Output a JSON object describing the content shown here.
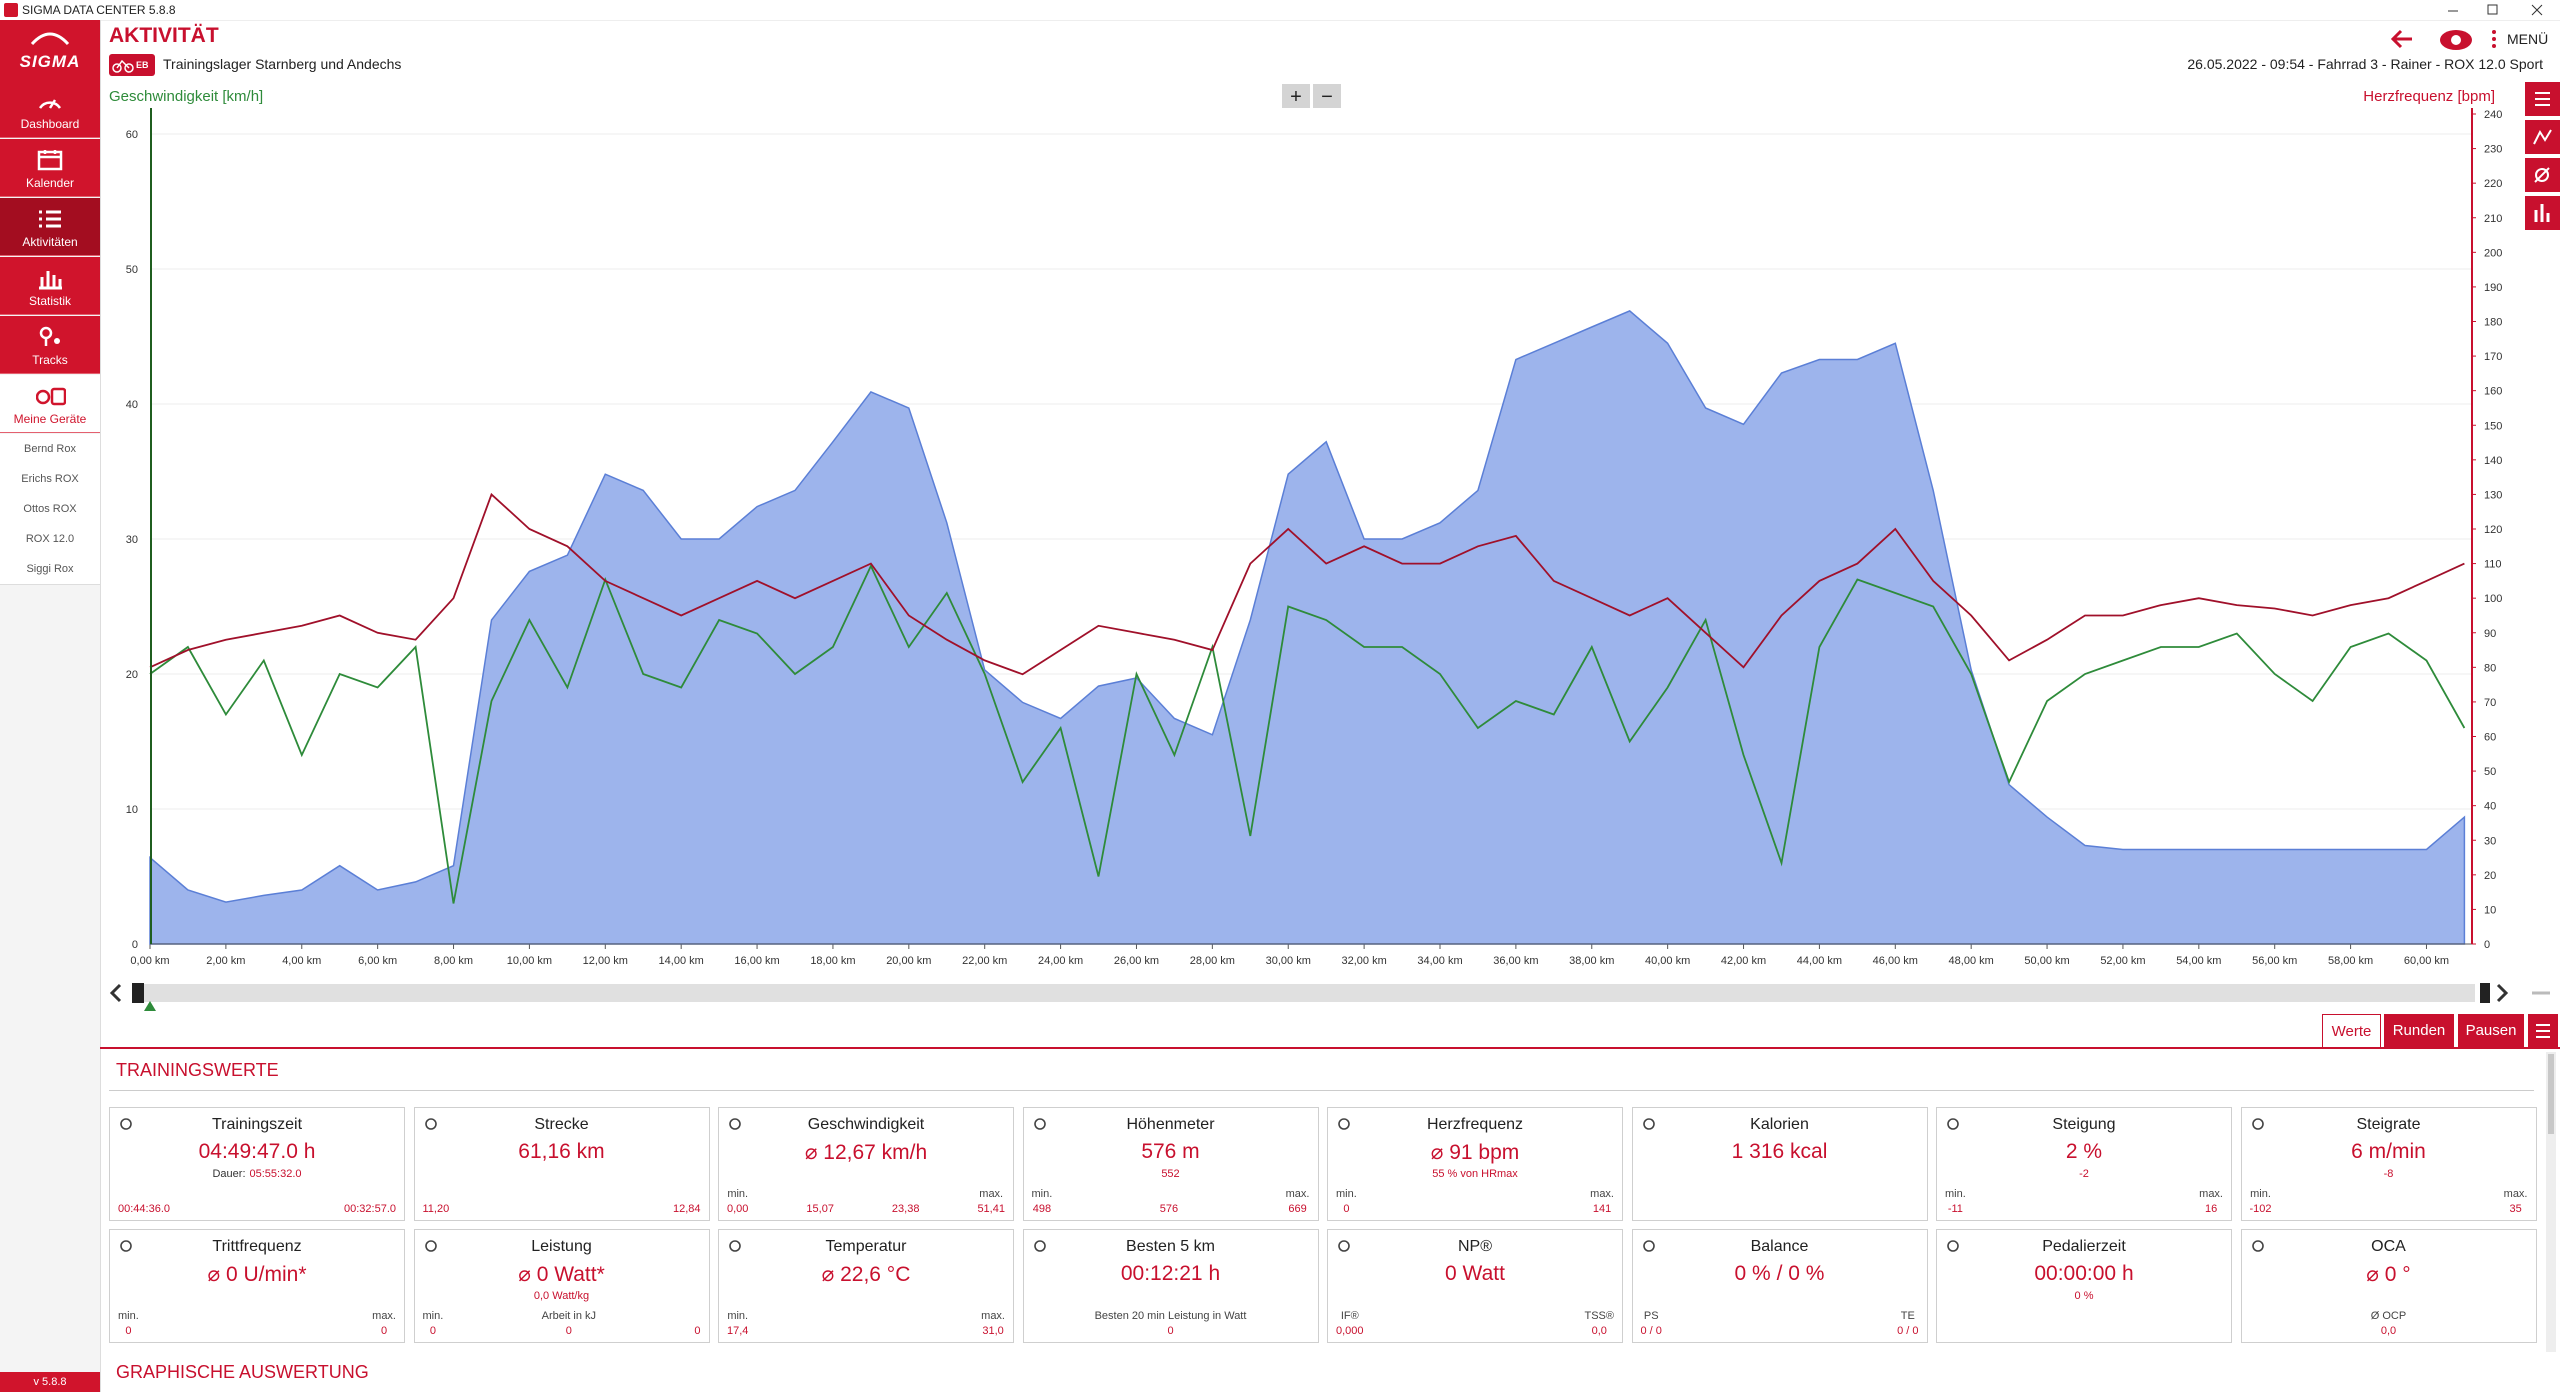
{
  "window_title": "SIGMA DATA CENTER 5.8.8",
  "sidebar": {
    "logo": "SIGMA",
    "nav": [
      "Dashboard",
      "Kalender",
      "Aktivitäten",
      "Statistik",
      "Tracks",
      "Meine Geräte"
    ],
    "devices": [
      "Bernd Rox",
      "Erichs ROX",
      "Ottos ROX",
      "ROX 12.0",
      "Siggi Rox"
    ],
    "version": "v 5.8.8"
  },
  "header": {
    "title": "AKTIVITÄT",
    "badge": "EB",
    "subtitle": "Trainingslager Starnberg und Andechs",
    "info": "26.05.2022 - 09:54 - Fahrrad 3 - Rainer - ROX 12.0 Sport",
    "menu": "MENÜ"
  },
  "zoom": [
    "+",
    "−"
  ],
  "chart_data": {
    "type": "line",
    "ylabel": "Geschwindigkeit [km/h]",
    "y2label": "Herzfrequenz [bpm]",
    "x": [
      0,
      1,
      2,
      3,
      4,
      5,
      6,
      7,
      8,
      9,
      10,
      11,
      12,
      13,
      14,
      15,
      16,
      17,
      18,
      19,
      20,
      21,
      22,
      23,
      24,
      25,
      26,
      27,
      28,
      29,
      30,
      31,
      32,
      33,
      34,
      35,
      36,
      37,
      38,
      39,
      40,
      41,
      42,
      43,
      44,
      45,
      46,
      47,
      48,
      49,
      50,
      51,
      52,
      53,
      54,
      55,
      56,
      57,
      58,
      59,
      60,
      61
    ],
    "series": [
      {
        "type": "area",
        "color": "#9db4ec",
        "values": [
          6.4,
          4,
          3.1,
          3.6,
          4,
          5.8,
          4,
          4.6,
          5.8,
          24,
          27.6,
          28.8,
          34.8,
          33.6,
          30,
          30,
          32.4,
          33.6,
          37.2,
          40.9,
          39.7,
          31.2,
          20.3,
          17.9,
          16.7,
          19.1,
          19.7,
          16.7,
          15.5,
          24,
          34.8,
          37.2,
          30,
          30,
          31.2,
          33.6,
          43.3,
          44.5,
          45.7,
          46.9,
          44.5,
          39.7,
          38.5,
          42.3,
          43.3,
          43.3,
          44.5,
          33.6,
          20.3,
          11.8,
          9.4,
          7.3,
          7,
          7,
          7,
          7,
          7,
          7,
          7,
          7,
          7,
          9.4
        ]
      },
      {
        "type": "line",
        "color": "#2e8b3a",
        "values": [
          20,
          22,
          17,
          21,
          14,
          20,
          19,
          22,
          3,
          18,
          24,
          19,
          27,
          20,
          19,
          24,
          23,
          20,
          22,
          28,
          22,
          26,
          20,
          12,
          16,
          5,
          20,
          14,
          22,
          8,
          25,
          24,
          22,
          22,
          20,
          16,
          18,
          17,
          22,
          15,
          19,
          24,
          14,
          6,
          22,
          27,
          26,
          25,
          20,
          12,
          18,
          20,
          21,
          22,
          22,
          23,
          20,
          18,
          22,
          23,
          21,
          16
        ]
      },
      {
        "type": "line",
        "axis": "y2",
        "color": "#a0102a",
        "values": [
          80,
          85,
          88,
          90,
          92,
          95,
          90,
          88,
          100,
          130,
          120,
          115,
          105,
          100,
          95,
          100,
          105,
          100,
          105,
          110,
          95,
          88,
          82,
          78,
          85,
          92,
          90,
          88,
          85,
          110,
          120,
          110,
          115,
          110,
          110,
          115,
          118,
          105,
          100,
          95,
          100,
          90,
          80,
          95,
          105,
          110,
          120,
          105,
          95,
          82,
          88,
          95,
          95,
          98,
          100,
          98,
          97,
          95,
          98,
          100,
          105,
          110
        ]
      }
    ],
    "xlim": [
      0,
      61.2
    ],
    "xticks": [
      {
        "value": 0,
        "label": "0,00 km"
      },
      {
        "value": 2,
        "label": "2,00 km"
      },
      {
        "value": 4,
        "label": "4,00 km"
      },
      {
        "value": 6,
        "label": "6,00 km"
      },
      {
        "value": 8,
        "label": "8,00 km"
      },
      {
        "value": 10,
        "label": "10,00 km"
      },
      {
        "value": 12,
        "label": "12,00 km"
      },
      {
        "value": 14,
        "label": "14,00 km"
      },
      {
        "value": 16,
        "label": "16,00 km"
      },
      {
        "value": 18,
        "label": "18,00 km"
      },
      {
        "value": 20,
        "label": "20,00 km"
      },
      {
        "value": 22,
        "label": "22,00 km"
      },
      {
        "value": 24,
        "label": "24,00 km"
      },
      {
        "value": 26,
        "label": "26,00 km"
      },
      {
        "value": 28,
        "label": "28,00 km"
      },
      {
        "value": 30,
        "label": "30,00 km"
      },
      {
        "value": 32,
        "label": "32,00 km"
      },
      {
        "value": 34,
        "label": "34,00 km"
      },
      {
        "value": 36,
        "label": "36,00 km"
      },
      {
        "value": 38,
        "label": "38,00 km"
      },
      {
        "value": 40,
        "label": "40,00 km"
      },
      {
        "value": 42,
        "label": "42,00 km"
      },
      {
        "value": 44,
        "label": "44,00 km"
      },
      {
        "value": 46,
        "label": "46,00 km"
      },
      {
        "value": 48,
        "label": "48,00 km"
      },
      {
        "value": 50,
        "label": "50,00 km"
      },
      {
        "value": 52,
        "label": "52,00 km"
      },
      {
        "value": 54,
        "label": "54,00 km"
      },
      {
        "value": 56,
        "label": "56,00 km"
      },
      {
        "value": 58,
        "label": "58,00 km"
      },
      {
        "value": 60,
        "label": "60,00 km"
      }
    ],
    "ylim": [
      0,
      60
    ],
    "yticks": [
      0,
      10,
      20,
      30,
      40,
      50,
      60
    ],
    "y2lim": [
      0,
      240
    ],
    "y2ticks": [
      0,
      10,
      20,
      30,
      40,
      50,
      60,
      70,
      80,
      90,
      100,
      110,
      120,
      130,
      140,
      150,
      160,
      170,
      180,
      190,
      200,
      210,
      220,
      230,
      240
    ],
    "grid": true
  },
  "tabs": [
    "Werte",
    "Runden",
    "Pausen"
  ],
  "section_title": "TRAININGSWERTE",
  "cards": [
    {
      "title": "Trainingszeit",
      "value": "04:49:47.0 h",
      "sub_label": "Dauer:",
      "sub": "05:55:32.0",
      "foot": [
        {
          "value": "00:44:36.0"
        },
        {
          "value": "00:32:57.0"
        }
      ]
    },
    {
      "title": "Strecke",
      "value": "61,16 km",
      "foot": [
        {
          "value": "11,20"
        },
        {
          "value": "12,84"
        }
      ]
    },
    {
      "title": "Geschwindigkeit",
      "value": "⌀ 12,67 km/h",
      "foot": [
        {
          "label": "min.",
          "value": "0,00"
        },
        {
          "value": "15,07"
        },
        {
          "value": "23,38"
        },
        {
          "label": "max.",
          "value": "51,41"
        }
      ]
    },
    {
      "title": "Höhenmeter",
      "value": "576 m",
      "sub": "552",
      "foot": [
        {
          "label": "min.",
          "value": "498"
        },
        {
          "value": "576"
        },
        {
          "label": "max.",
          "value": "669"
        }
      ]
    },
    {
      "title": "Herzfrequenz",
      "value": "⌀ 91 bpm",
      "sub": "55 % von HRmax",
      "foot": [
        {
          "label": "min.",
          "value": "0"
        },
        {
          "label": "max.",
          "value": "141"
        }
      ]
    },
    {
      "title": "Kalorien",
      "value": "1 316 kcal"
    },
    {
      "title": "Steigung",
      "value": "2 %",
      "sub": "-2",
      "foot": [
        {
          "label": "min.",
          "value": "-11"
        },
        {
          "label": "max.",
          "value": "16"
        }
      ]
    },
    {
      "title": "Steigrate",
      "value": "6 m/min",
      "sub": "-8",
      "foot": [
        {
          "label": "min.",
          "value": "-102"
        },
        {
          "label": "max.",
          "value": "35"
        }
      ]
    },
    {
      "title": "Trittfrequenz",
      "value": "⌀ 0 U/min*",
      "foot": [
        {
          "label": "min.",
          "value": "0"
        },
        {
          "label": "max.",
          "value": "0"
        }
      ]
    },
    {
      "title": "Leistung",
      "value": "⌀ 0 Watt*",
      "sub": "0,0 Watt/kg",
      "foot": [
        {
          "label": "min.",
          "value": "0"
        },
        {
          "label": "Arbeit in kJ",
          "value": "0"
        },
        {
          "value": "0"
        }
      ]
    },
    {
      "title": "Temperatur",
      "value": "⌀ 22,6 °C",
      "foot": [
        {
          "label": "min.",
          "value": "17,4"
        },
        {
          "label": "max.",
          "value": "31,0"
        }
      ]
    },
    {
      "title": "Besten 5 km",
      "value": "00:12:21 h",
      "foot": [
        {
          "label": "Besten 20 min Leistung in Watt",
          "value": "0"
        }
      ]
    },
    {
      "title": "NP®",
      "value": "0 Watt",
      "foot": [
        {
          "label": "IF®",
          "value": "0,000"
        },
        {
          "label": "TSS®",
          "value": "0,0"
        }
      ]
    },
    {
      "title": "Balance",
      "value": "0 %  /  0 %",
      "foot": [
        {
          "label": "PS",
          "value": "0  /  0"
        },
        {
          "label": "TE",
          "value": "0  /  0"
        }
      ]
    },
    {
      "title": "Pedalierzeit",
      "value": "00:00:00 h",
      "sub": "0 %"
    },
    {
      "title": "OCA",
      "value": "⌀ 0 °",
      "foot": [
        {
          "label": "Ø OCP",
          "value": "0,0"
        }
      ]
    }
  ],
  "section2_title": "GRAPHISCHE AUSWERTUNG"
}
